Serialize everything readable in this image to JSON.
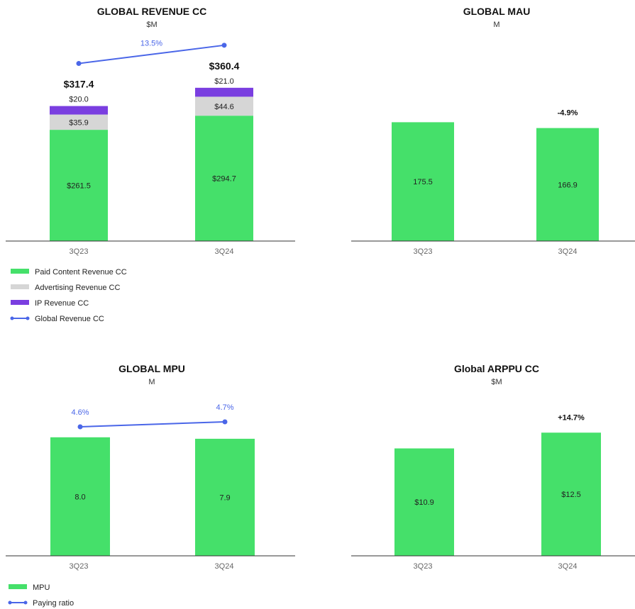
{
  "colors": {
    "paid": "#45e06a",
    "ads": "#d6d6d6",
    "ip": "#7a3ee0",
    "line": "#4a66e8",
    "axis": "#333333",
    "bar": "#45e06a"
  },
  "chart_data": [
    {
      "id": "revenue",
      "type": "bar",
      "stacked": true,
      "title": "GLOBAL REVENUE CC",
      "subtitle": "$M",
      "categories": [
        "3Q23",
        "3Q24"
      ],
      "series": [
        {
          "name": "Paid Content Revenue CC",
          "values": [
            261.5,
            294.7
          ],
          "labels": [
            "$261.5",
            "$294.7"
          ]
        },
        {
          "name": "Advertising Revenue CC",
          "values": [
            35.9,
            44.6
          ],
          "labels": [
            "$35.9",
            "$44.6"
          ]
        },
        {
          "name": "IP Revenue CC",
          "values": [
            20.0,
            21.0
          ],
          "labels": [
            "$20.0",
            "$21.0"
          ]
        }
      ],
      "totals": [
        317.4,
        360.4
      ],
      "total_labels": [
        "$317.4",
        "$360.4"
      ],
      "line": {
        "name": "Global Revenue CC",
        "label": "13.5%"
      },
      "legend": [
        {
          "name": "Paid Content Revenue CC",
          "kind": "bar",
          "color": "#45e06a"
        },
        {
          "name": "Advertising Revenue CC",
          "kind": "bar",
          "color": "#d6d6d6"
        },
        {
          "name": "IP Revenue CC",
          "kind": "bar",
          "color": "#7a3ee0"
        },
        {
          "name": "Global Revenue CC",
          "kind": "line",
          "color": "#4a66e8"
        }
      ]
    },
    {
      "id": "mau",
      "type": "bar",
      "title": "GLOBAL MAU",
      "subtitle": "M",
      "categories": [
        "3Q23",
        "3Q24"
      ],
      "values": [
        175.5,
        166.9
      ],
      "labels": [
        "175.5",
        "166.9"
      ],
      "change_label": "-4.9%"
    },
    {
      "id": "mpu",
      "type": "bar",
      "title": "GLOBAL MPU",
      "subtitle": "M",
      "categories": [
        "3Q23",
        "3Q24"
      ],
      "values": [
        8.0,
        7.9
      ],
      "labels": [
        "8.0",
        "7.9"
      ],
      "line": {
        "name": "Paying ratio",
        "values": [
          4.6,
          4.7
        ],
        "labels": [
          "4.6%",
          "4.7%"
        ]
      },
      "legend": [
        {
          "name": "MPU",
          "kind": "bar",
          "color": "#45e06a"
        },
        {
          "name": "Paying ratio",
          "kind": "line",
          "color": "#4a66e8"
        }
      ]
    },
    {
      "id": "arppu",
      "type": "bar",
      "title": "Global ARPPU CC",
      "subtitle": "$M",
      "categories": [
        "3Q23",
        "3Q24"
      ],
      "values": [
        10.9,
        12.5
      ],
      "labels": [
        "$10.9",
        "$12.5"
      ],
      "change_label": "+14.7%"
    }
  ]
}
